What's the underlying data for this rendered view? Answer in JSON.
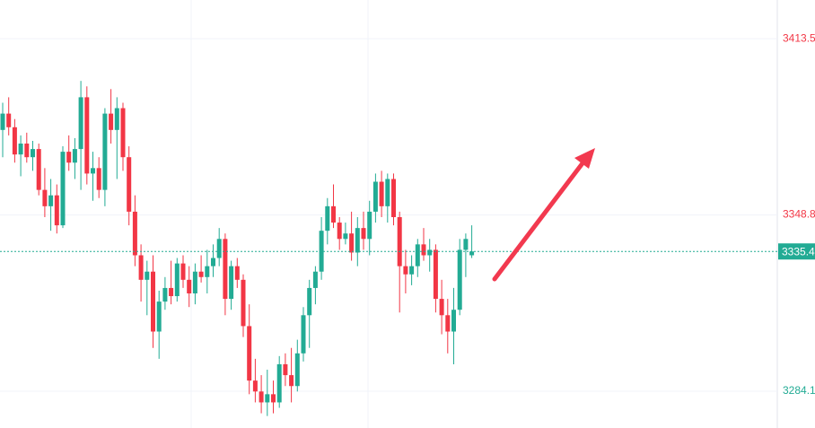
{
  "chart_data": {
    "type": "candlestick",
    "open": [
      3380,
      3386,
      3381,
      3371,
      3375,
      3370,
      3373,
      3358,
      3352,
      3356,
      3345,
      3372,
      3368,
      3373,
      3392,
      3364,
      3366,
      3358,
      3386,
      3380,
      3388,
      3370,
      3350,
      3334,
      3325,
      3328,
      3306,
      3317,
      3322,
      3319,
      3331,
      3325,
      3320,
      3328,
      3326,
      3330,
      3333,
      3340,
      3318,
      3330,
      3325,
      3308,
      3288,
      3284,
      3280,
      3283,
      3280,
      3294,
      3290,
      3286,
      3298,
      3312,
      3322,
      3328,
      3343,
      3352,
      3346,
      3340,
      3342,
      3335,
      3344,
      3340,
      3350,
      3361,
      3352,
      3362,
      3348,
      3330,
      3327,
      3330,
      3338,
      3334,
      3336,
      3318,
      3312,
      3306,
      3314,
      3336,
      3334
    ],
    "high": [
      3390,
      3392,
      3384,
      3378,
      3379,
      3376,
      3375,
      3366,
      3362,
      3360,
      3374,
      3378,
      3377,
      3398,
      3396,
      3372,
      3370,
      3388,
      3395,
      3392,
      3390,
      3374,
      3356,
      3338,
      3332,
      3334,
      3321,
      3326,
      3332,
      3333,
      3334,
      3330,
      3331,
      3334,
      3336,
      3338,
      3344,
      3342,
      3332,
      3333,
      3327,
      3316,
      3296,
      3290,
      3292,
      3288,
      3297,
      3298,
      3300,
      3303,
      3315,
      3325,
      3330,
      3348,
      3355,
      3360,
      3348,
      3346,
      3350,
      3348,
      3350,
      3354,
      3364,
      3365,
      3364,
      3364,
      3350,
      3336,
      3334,
      3340,
      3344,
      3340,
      3338,
      3325,
      3318,
      3322,
      3340,
      3342,
      3345
    ],
    "low": [
      3370,
      3378,
      3368,
      3363,
      3368,
      3365,
      3356,
      3348,
      3343,
      3342,
      3344,
      3365,
      3362,
      3358,
      3360,
      3354,
      3355,
      3352,
      3375,
      3362,
      3365,
      3345,
      3330,
      3317,
      3312,
      3300,
      3296,
      3314,
      3316,
      3317,
      3322,
      3315,
      3316,
      3324,
      3320,
      3326,
      3330,
      3312,
      3314,
      3322,
      3304,
      3283,
      3280,
      3276,
      3275,
      3276,
      3278,
      3286,
      3280,
      3284,
      3295,
      3300,
      3316,
      3325,
      3338,
      3344,
      3336,
      3338,
      3332,
      3330,
      3336,
      3334,
      3346,
      3348,
      3346,
      3345,
      3313,
      3320,
      3323,
      3326,
      3332,
      3328,
      3313,
      3305,
      3298,
      3294,
      3312,
      3326,
      3333
    ],
    "close": [
      3386,
      3381,
      3371,
      3375,
      3370,
      3373,
      3358,
      3352,
      3356,
      3345,
      3372,
      3368,
      3373,
      3392,
      3364,
      3366,
      3358,
      3386,
      3380,
      3388,
      3370,
      3350,
      3334,
      3325,
      3328,
      3306,
      3317,
      3322,
      3319,
      3331,
      3325,
      3320,
      3328,
      3326,
      3330,
      3333,
      3340,
      3318,
      3330,
      3325,
      3308,
      3288,
      3284,
      3280,
      3283,
      3280,
      3294,
      3290,
      3286,
      3298,
      3312,
      3322,
      3328,
      3343,
      3352,
      3346,
      3340,
      3342,
      3335,
      3344,
      3340,
      3350,
      3361,
      3352,
      3362,
      3348,
      3330,
      3327,
      3330,
      3338,
      3334,
      3336,
      3318,
      3312,
      3306,
      3314,
      3336,
      3340,
      3335.4
    ],
    "up_color": "#22ab94",
    "down_color": "#f23645",
    "ylim": [
      3270.6,
      3427.7
    ],
    "yticks": [
      3413.5,
      3348.8,
      3284.1
    ],
    "grid": true,
    "last_price": 3335.4
  }
}
